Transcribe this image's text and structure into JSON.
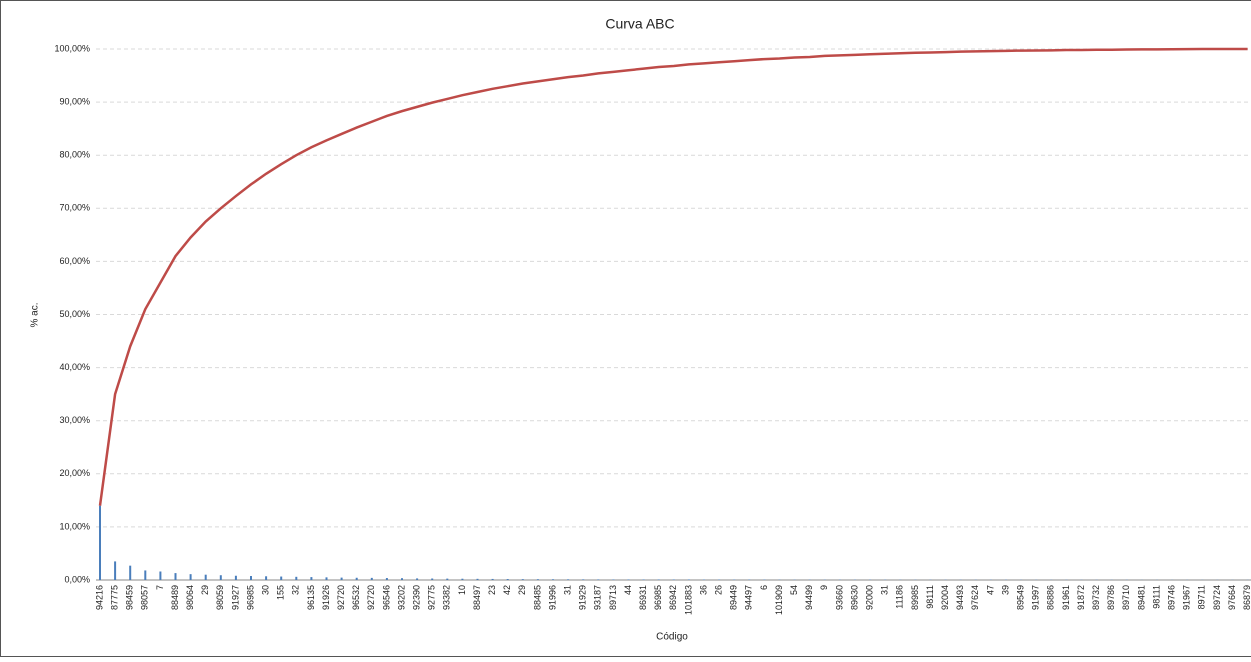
{
  "chart_data": {
    "type": "bar_line",
    "title": "Curva ABC",
    "ylabel": "% ac.",
    "xlabel": "Código",
    "categories": [
      "94216",
      "87775",
      "98459",
      "98057",
      "7",
      "88489",
      "98064",
      "29",
      "98059",
      "91927",
      "96985",
      "30",
      "155",
      "32",
      "96135",
      "91926",
      "92720",
      "96532",
      "92720",
      "96546",
      "93202",
      "92390",
      "92775",
      "93382",
      "10",
      "88497",
      "23",
      "42",
      "29",
      "88485",
      "91996",
      "31",
      "91929",
      "93187",
      "89713",
      "44",
      "86931",
      "96985",
      "86942",
      "101883",
      "36",
      "26",
      "89449",
      "94497",
      "6",
      "101909",
      "54",
      "94499",
      "9",
      "93660",
      "89630",
      "92000",
      "31",
      "11186",
      "89985",
      "98111",
      "92004",
      "94493",
      "97624",
      "47",
      "39",
      "89549",
      "91997",
      "86886",
      "91961",
      "91872",
      "89732",
      "89786",
      "89710",
      "89481",
      "98111",
      "89746",
      "91967",
      "89711",
      "89724",
      "97664",
      "86879"
    ],
    "series": [
      {
        "type": "bar",
        "color": "#4a7ebb",
        "values": [
          14,
          3.5,
          2.7,
          1.8,
          1.6,
          1.3,
          1.1,
          1.0,
          0.9,
          0.8,
          0.75,
          0.7,
          0.65,
          0.6,
          0.55,
          0.5,
          0.45,
          0.42,
          0.4,
          0.37,
          0.34,
          0.3,
          0.28,
          0.26,
          0.24,
          0.22,
          0.2,
          0.18,
          0.16,
          0.15,
          0.14,
          0.13,
          0.12,
          0.11,
          0.1,
          0.1,
          0.1,
          0.1,
          0.1,
          0.1,
          0.08,
          0.08,
          0.08,
          0.08,
          0.08,
          0.06,
          0.06,
          0.06,
          0.06,
          0.06,
          0.06,
          0.06,
          0.06,
          0.05,
          0.05,
          0.05,
          0.05,
          0.05,
          0.05,
          0.05,
          0.05,
          0.04,
          0.04,
          0.04,
          0.04,
          0.04,
          0.04,
          0.04,
          0.04,
          0.03,
          0.03,
          0.03,
          0.03,
          0.03,
          0.03,
          0.03,
          0.03
        ]
      },
      {
        "type": "line",
        "color": "#be4b48",
        "values": [
          14,
          35,
          44,
          51,
          56,
          61,
          64.5,
          67.5,
          70,
          72.3,
          74.5,
          76.5,
          78.3,
          80,
          81.5,
          82.8,
          84,
          85.2,
          86.3,
          87.4,
          88.3,
          89.1,
          89.9,
          90.6,
          91.3,
          91.9,
          92.5,
          93,
          93.5,
          93.9,
          94.3,
          94.7,
          95,
          95.4,
          95.7,
          96,
          96.3,
          96.6,
          96.8,
          97.1,
          97.3,
          97.5,
          97.7,
          97.9,
          98.1,
          98.2,
          98.4,
          98.5,
          98.7,
          98.8,
          98.9,
          99.0,
          99.1,
          99.2,
          99.3,
          99.35,
          99.4,
          99.5,
          99.55,
          99.6,
          99.65,
          99.7,
          99.72,
          99.75,
          99.8,
          99.82,
          99.85,
          99.87,
          99.9,
          99.92,
          99.94,
          99.96,
          99.98,
          99.99,
          99.995,
          99.998,
          100
        ]
      }
    ],
    "ylim": [
      0,
      100
    ],
    "yticks": [
      {
        "value": 0,
        "label": "0,00%"
      },
      {
        "value": 10,
        "label": "10,00%"
      },
      {
        "value": 20,
        "label": "20,00%"
      },
      {
        "value": 30,
        "label": "30,00%"
      },
      {
        "value": 40,
        "label": "40,00%"
      },
      {
        "value": 50,
        "label": "50,00%"
      },
      {
        "value": 60,
        "label": "60,00%"
      },
      {
        "value": 70,
        "label": "70,00%"
      },
      {
        "value": 80,
        "label": "80,00%"
      },
      {
        "value": 90,
        "label": "90,00%"
      },
      {
        "value": 100,
        "label": "100,00%"
      }
    ],
    "grid": true
  }
}
